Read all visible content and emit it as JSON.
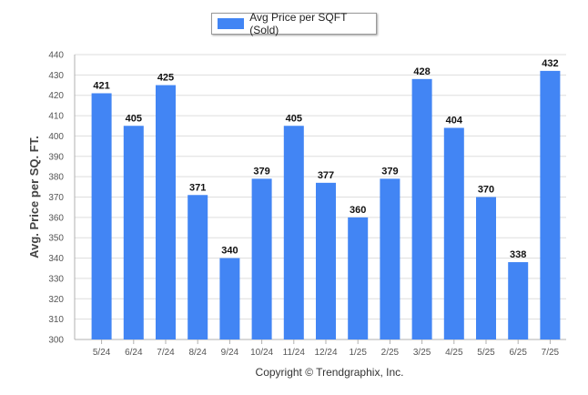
{
  "chart_data": {
    "type": "bar",
    "categories": [
      "5/24",
      "6/24",
      "7/24",
      "8/24",
      "9/24",
      "10/24",
      "11/24",
      "12/24",
      "1/25",
      "2/25",
      "3/25",
      "4/25",
      "5/25",
      "6/25",
      "7/25"
    ],
    "series": [
      {
        "name": "Avg Price per SQFT (Sold)",
        "values": [
          421,
          405,
          425,
          371,
          340,
          379,
          405,
          377,
          360,
          379,
          428,
          404,
          370,
          338,
          432
        ]
      }
    ],
    "ylabel": "Avg. Price per SQ. FT.",
    "ylim": [
      300,
      440
    ],
    "yticks": [
      300,
      310,
      320,
      330,
      340,
      350,
      360,
      370,
      380,
      390,
      400,
      410,
      420,
      430,
      440
    ],
    "grid": true,
    "legend_position": "top-center",
    "bar_color": "#4285f4",
    "grid_color": "#dddddd",
    "axis_color": "#b0b0b0"
  },
  "footer": {
    "copyright": "Copyright © Trendgraphix, Inc."
  }
}
